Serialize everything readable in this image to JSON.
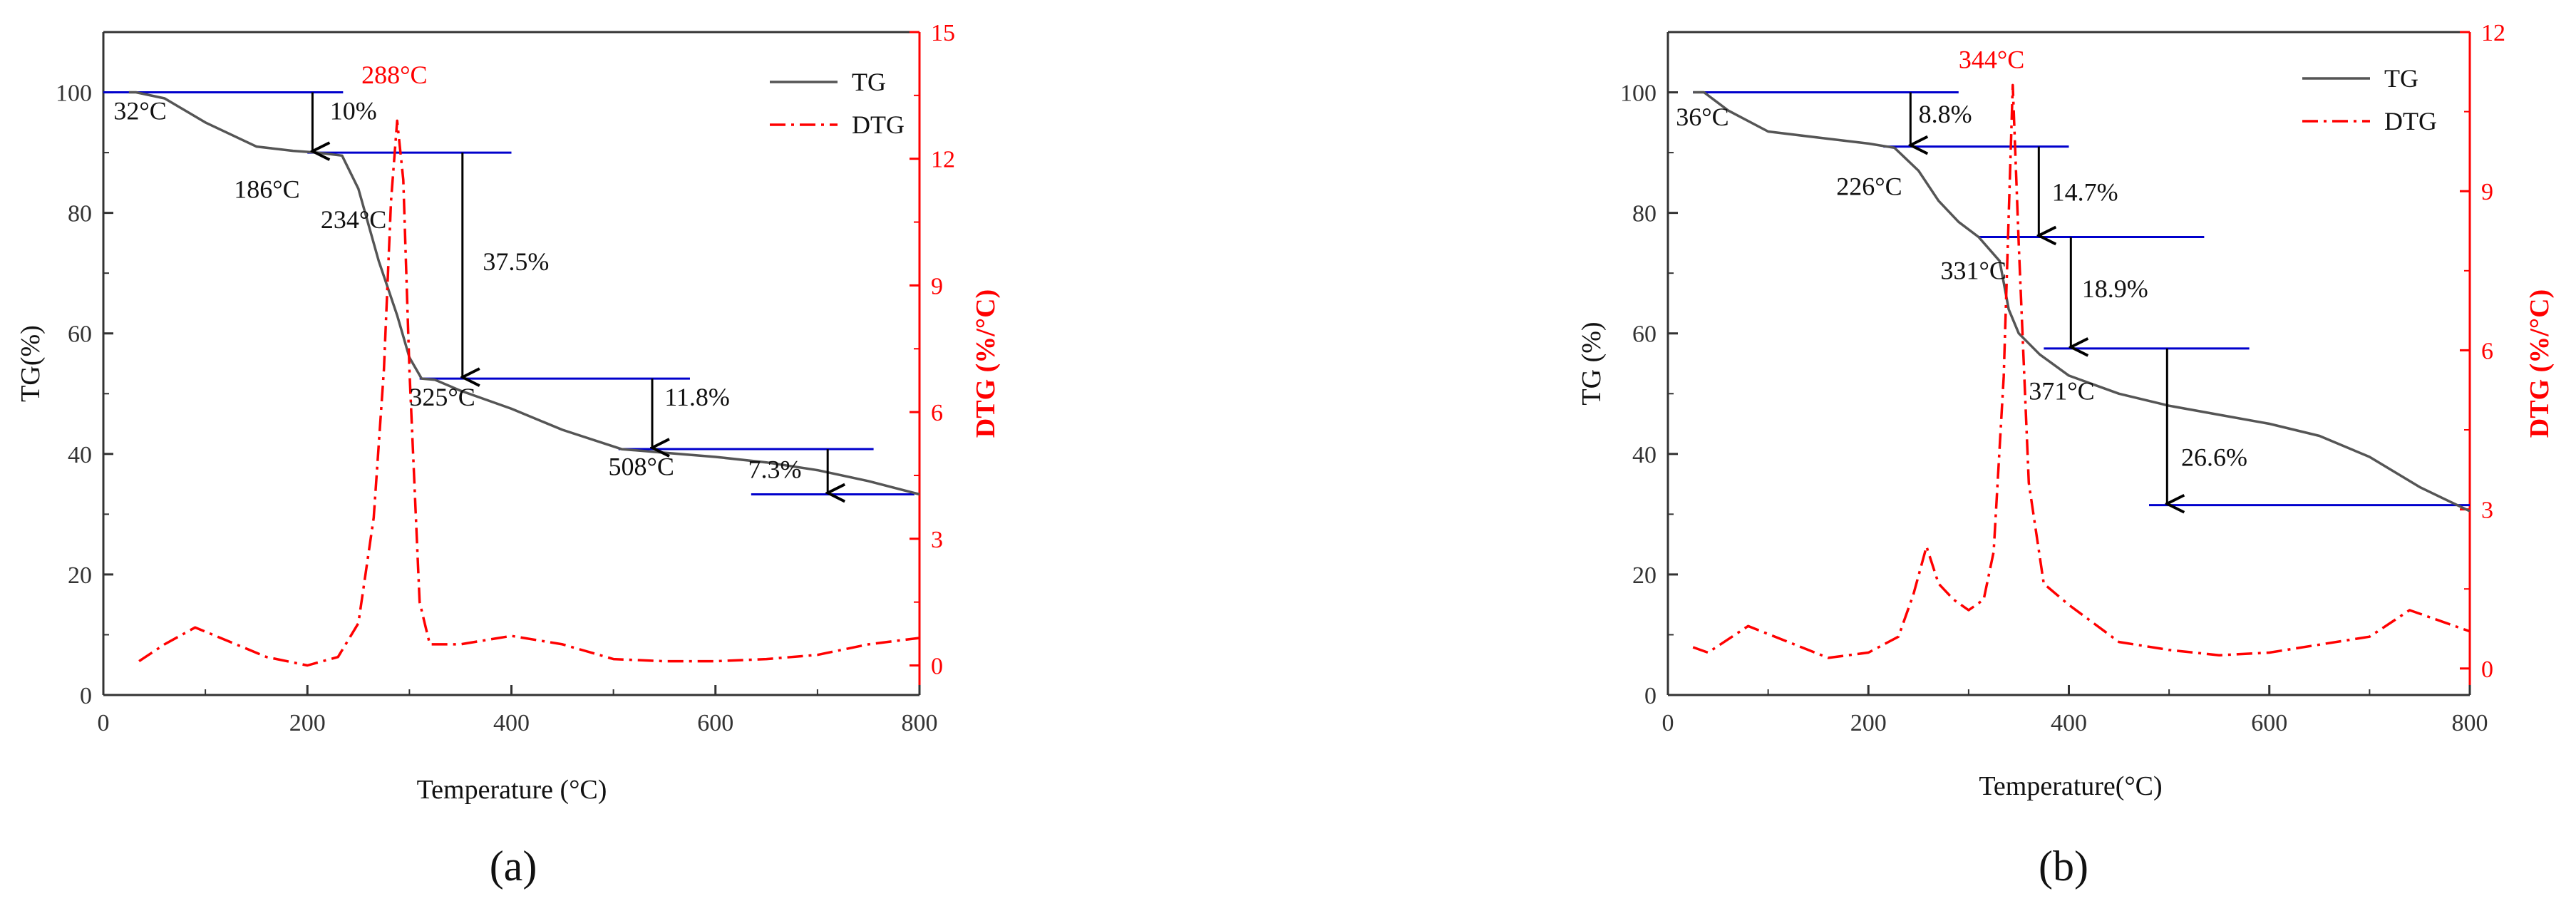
{
  "colors": {
    "tg": "#555555",
    "dtg": "#ff0000",
    "step_lines": "#0000cc",
    "arrows": "#000000",
    "axis": "#333333",
    "dtg_axis": "#ff0000"
  },
  "chart_data": [
    {
      "type": "line",
      "panel_label": "(a)",
      "xlabel": "Temperature (°C)",
      "ylabel": "TG(%)",
      "y2label": "DTG (%/°C)",
      "xlim": [
        0,
        800
      ],
      "ylim": [
        0,
        110
      ],
      "y2lim": [
        -0.7,
        15
      ],
      "xticks": [
        0,
        200,
        400,
        600,
        800
      ],
      "yticks": [
        0,
        20,
        40,
        60,
        80,
        100
      ],
      "y2ticks": [
        0,
        3,
        6,
        9,
        12,
        15
      ],
      "legend": [
        "TG",
        "DTG"
      ],
      "legend_position": "top-right",
      "series": [
        {
          "name": "TG",
          "axis": "left",
          "style": "solid",
          "x": [
            25,
            32,
            60,
            100,
            150,
            186,
            210,
            234,
            250,
            270,
            288,
            300,
            312,
            325,
            350,
            400,
            450,
            508,
            550,
            600,
            650,
            700,
            750,
            800
          ],
          "y": [
            100,
            100,
            99,
            95,
            91,
            90.3,
            90,
            89.5,
            84,
            72,
            63,
            56,
            52.5,
            52.3,
            50.5,
            47.5,
            44,
            40.8,
            40.2,
            39.5,
            38.6,
            37.3,
            35.5,
            33.3
          ]
        },
        {
          "name": "DTG",
          "axis": "right",
          "style": "dash-dot",
          "x": [
            35,
            60,
            90,
            120,
            160,
            200,
            230,
            250,
            265,
            275,
            282,
            288,
            294,
            300,
            310,
            320,
            350,
            400,
            450,
            500,
            550,
            600,
            650,
            700,
            750,
            800
          ],
          "y": [
            0.1,
            0.5,
            0.9,
            0.6,
            0.2,
            0.0,
            0.2,
            1.0,
            3.5,
            7.0,
            11.0,
            12.9,
            11.5,
            7.0,
            1.5,
            0.5,
            0.5,
            0.7,
            0.5,
            0.15,
            0.1,
            0.1,
            0.15,
            0.25,
            0.5,
            0.65
          ]
        }
      ],
      "step_lines": [
        {
          "y": 100,
          "x0": 0,
          "x1": 235
        },
        {
          "y": 90,
          "x0": 200,
          "x1": 400
        },
        {
          "y": 52.5,
          "x0": 310,
          "x1": 575
        },
        {
          "y": 40.8,
          "x0": 505,
          "x1": 755
        },
        {
          "y": 33.3,
          "x0": 635,
          "x1": 795
        }
      ],
      "arrows": [
        {
          "x": 205,
          "y_from": 100,
          "y_to": 90
        },
        {
          "x": 352,
          "y_from": 90,
          "y_to": 52.5
        },
        {
          "x": 538,
          "y_from": 52.5,
          "y_to": 40.8
        },
        {
          "x": 710,
          "y_from": 40.8,
          "y_to": 33.3
        }
      ],
      "annotations": [
        {
          "text": "32°C",
          "x": 10,
          "y": 95.5,
          "color": "black"
        },
        {
          "text": "10%",
          "x": 222,
          "y": 95.5,
          "color": "black"
        },
        {
          "text": "288°C",
          "x": 253,
          "y": 101.5,
          "color": "red"
        },
        {
          "text": "186°C",
          "x": 128,
          "y": 82.5,
          "color": "black"
        },
        {
          "text": "234°C",
          "x": 213,
          "y": 77.5,
          "color": "black"
        },
        {
          "text": "37.5%",
          "x": 372,
          "y": 70.5,
          "color": "black"
        },
        {
          "text": "325°C",
          "x": 300,
          "y": 48,
          "color": "black"
        },
        {
          "text": "11.8%",
          "x": 550,
          "y": 48,
          "color": "black"
        },
        {
          "text": "508°C",
          "x": 495,
          "y": 36.5,
          "color": "black"
        },
        {
          "text": "7.3%",
          "x": 632,
          "y": 36,
          "color": "black"
        }
      ]
    },
    {
      "type": "line",
      "panel_label": "(b)",
      "xlabel": "Temperature(°C)",
      "ylabel": "TG (%)",
      "y2label": "DTG (%/°C)",
      "xlim": [
        0,
        800
      ],
      "ylim": [
        0,
        110
      ],
      "y2lim": [
        -0.5,
        12
      ],
      "xticks": [
        0,
        200,
        400,
        600,
        800
      ],
      "yticks": [
        0,
        20,
        40,
        60,
        80,
        100
      ],
      "y2ticks": [
        0,
        3,
        6,
        9,
        12
      ],
      "legend": [
        "TG",
        "DTG"
      ],
      "legend_position": "top-right",
      "series": [
        {
          "name": "TG",
          "axis": "left",
          "style": "solid",
          "x": [
            25,
            36,
            60,
            100,
            150,
            200,
            226,
            250,
            270,
            290,
            310,
            331,
            340,
            350,
            371,
            400,
            450,
            500,
            550,
            600,
            650,
            700,
            750,
            800
          ],
          "y": [
            100,
            100,
            97,
            93.5,
            92.5,
            91.5,
            90.8,
            87,
            82,
            78.5,
            76,
            72,
            64,
            60,
            56.5,
            53,
            50,
            48,
            46.5,
            45,
            43,
            39.5,
            34.5,
            30.5
          ]
        },
        {
          "name": "DTG",
          "axis": "right",
          "style": "dash-dot",
          "x": [
            25,
            40,
            80,
            120,
            160,
            200,
            230,
            245,
            258,
            270,
            285,
            300,
            315,
            325,
            335,
            344,
            350,
            360,
            375,
            400,
            450,
            500,
            550,
            600,
            650,
            700,
            740,
            770,
            800
          ],
          "y": [
            0.4,
            0.3,
            0.8,
            0.5,
            0.2,
            0.3,
            0.6,
            1.4,
            2.3,
            1.6,
            1.3,
            1.1,
            1.3,
            2.2,
            5.5,
            11.0,
            8.0,
            3.5,
            1.6,
            1.2,
            0.5,
            0.35,
            0.25,
            0.3,
            0.45,
            0.6,
            1.1,
            0.9,
            0.7
          ]
        }
      ],
      "step_lines": [
        {
          "y": 100,
          "x0": 25,
          "x1": 290
        },
        {
          "y": 91,
          "x0": 215,
          "x1": 400
        },
        {
          "y": 76,
          "x0": 310,
          "x1": 535
        },
        {
          "y": 57.5,
          "x0": 375,
          "x1": 580
        },
        {
          "y": 31.5,
          "x0": 480,
          "x1": 800
        }
      ],
      "arrows": [
        {
          "x": 242,
          "y_from": 100,
          "y_to": 91
        },
        {
          "x": 370,
          "y_from": 91,
          "y_to": 76
        },
        {
          "x": 402,
          "y_from": 76,
          "y_to": 57.5
        },
        {
          "x": 498,
          "y_from": 57.5,
          "y_to": 31.5
        }
      ],
      "annotations": [
        {
          "text": "36°C",
          "x": 8,
          "y": 94.5,
          "color": "black"
        },
        {
          "text": "8.8%",
          "x": 250,
          "y": 95,
          "color": "black"
        },
        {
          "text": "344°C",
          "x": 290,
          "y": 104,
          "color": "red"
        },
        {
          "text": "226°C",
          "x": 168,
          "y": 83,
          "color": "black"
        },
        {
          "text": "14.7%",
          "x": 383,
          "y": 82,
          "color": "black"
        },
        {
          "text": "331°C",
          "x": 272,
          "y": 69,
          "color": "black"
        },
        {
          "text": "18.9%",
          "x": 413,
          "y": 66,
          "color": "black"
        },
        {
          "text": "371°C",
          "x": 360,
          "y": 49,
          "color": "black"
        },
        {
          "text": "26.6%",
          "x": 512,
          "y": 38,
          "color": "black"
        }
      ]
    }
  ]
}
